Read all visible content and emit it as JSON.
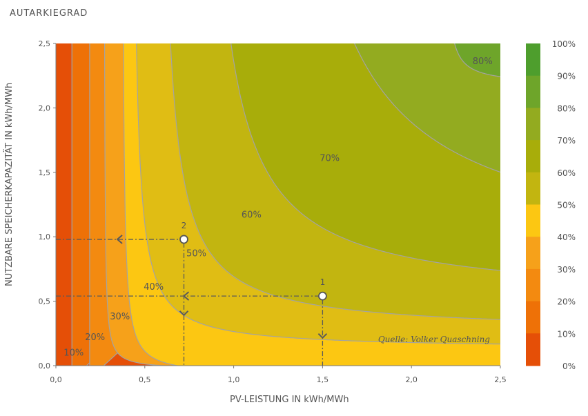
{
  "header": {
    "title": "AUTARKIEGRAD"
  },
  "chart_data": {
    "type": "contour",
    "title": "AUTARKIEGRAD",
    "xlabel": "PV-LEISTUNG IN kWh/MWh",
    "ylabel": "NUTZBARE SPEICHERKAPAZITÄT IN kWh/MWh",
    "xlim": [
      0,
      2.5
    ],
    "ylim": [
      0,
      2.5
    ],
    "x_ticks": [
      "0,0",
      "0,5",
      "1,0",
      "1,5",
      "2,0",
      "2,5"
    ],
    "y_ticks": [
      "0,0",
      "0,5",
      "1,0",
      "1,5",
      "2,0",
      "2,5"
    ],
    "contour_labels": [
      {
        "text": "10%",
        "x": 0.1,
        "y": 0.1
      },
      {
        "text": "20%",
        "x": 0.22,
        "y": 0.22
      },
      {
        "text": "30%",
        "x": 0.36,
        "y": 0.38
      },
      {
        "text": "40%",
        "x": 0.55,
        "y": 0.61
      },
      {
        "text": "50%",
        "x": 0.79,
        "y": 0.87
      },
      {
        "text": "60%",
        "x": 1.1,
        "y": 1.17
      },
      {
        "text": "70%",
        "x": 1.54,
        "y": 1.61
      },
      {
        "text": "80%",
        "x": 2.4,
        "y": 2.36
      }
    ],
    "points": [
      {
        "label": "1",
        "x": 1.5,
        "y": 0.54
      },
      {
        "label": "2",
        "x": 0.72,
        "y": 0.98
      }
    ],
    "colorbar": {
      "labels": [
        "100%",
        "90%",
        "80%",
        "70%",
        "60%",
        "50%",
        "40%",
        "30%",
        "20%",
        "10%",
        "0%"
      ],
      "colors": [
        "#4e9e2d",
        "#6ea52a",
        "#93ab20",
        "#a8ad0a",
        "#c2b510",
        "#e0bd14",
        "#fcc712",
        "#f6a11a",
        "#f38a10",
        "#ee7107",
        "#e54f07"
      ]
    },
    "band_colors": [
      "#e54f07",
      "#ee7107",
      "#f38a10",
      "#f6a11a",
      "#fcc712",
      "#e0bd14",
      "#c2b510",
      "#a8ad0a",
      "#93ab20",
      "#6ea52a"
    ],
    "source": "Quelle: Volker Quaschning",
    "grid": false,
    "legend_position": "right (colorbar)"
  }
}
